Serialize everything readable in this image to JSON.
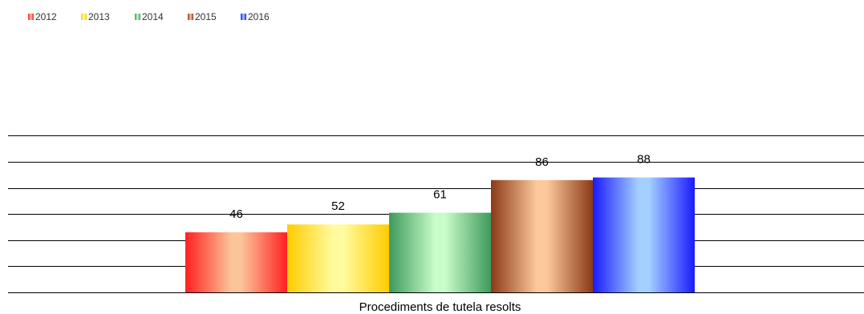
{
  "chart_data": {
    "type": "bar",
    "categories": [
      "Procediments de tutela resolts"
    ],
    "series": [
      {
        "name": "2012",
        "values": [
          46
        ],
        "color": "#ff2020",
        "light": "#fcc499"
      },
      {
        "name": "2013",
        "values": [
          52
        ],
        "color": "#ffcc00",
        "light": "#fffb9e"
      },
      {
        "name": "2014",
        "values": [
          61
        ],
        "color": "#3e9a5c",
        "light": "#c8fcc8"
      },
      {
        "name": "2015",
        "values": [
          86
        ],
        "color": "#8b3a16",
        "light": "#fcc89c"
      },
      {
        "name": "2016",
        "values": [
          88
        ],
        "color": "#1a1aff",
        "light": "#a4d0ff"
      }
    ],
    "title": "",
    "xlabel": "",
    "ylabel": "",
    "ylim": [
      0,
      120
    ],
    "grid_step": 20,
    "grid": true,
    "legend": "top-left",
    "show_data_labels": true
  }
}
